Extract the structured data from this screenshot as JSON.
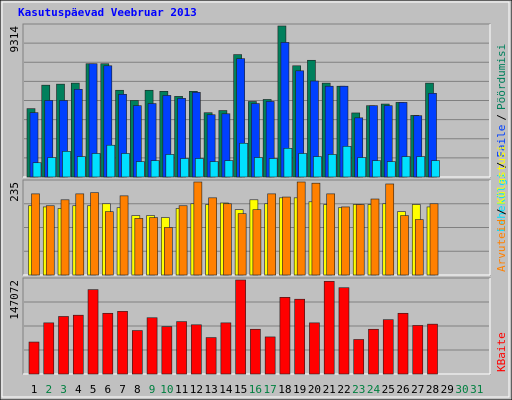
{
  "title": "Kasutuspäevad Veebruar 2013",
  "separator": "/",
  "categories": [
    "1",
    "2",
    "3",
    "4",
    "5",
    "6",
    "7",
    "8",
    "9",
    "10",
    "11",
    "12",
    "13",
    "14",
    "15",
    "16",
    "17",
    "18",
    "19",
    "20",
    "21",
    "22",
    "23",
    "24",
    "25",
    "26",
    "27",
    "28",
    "29",
    "30",
    "31"
  ],
  "category_colors": [
    "#000000",
    "#008040",
    "#008040",
    "#000000",
    "#000000",
    "#000000",
    "#000000",
    "#000000",
    "#008040",
    "#008040",
    "#000000",
    "#000000",
    "#000000",
    "#000000",
    "#000000",
    "#008040",
    "#008040",
    "#000000",
    "#000000",
    "#000000",
    "#000000",
    "#000000",
    "#008040",
    "#008040",
    "#000000",
    "#000000",
    "#000000",
    "#000000",
    "#000000",
    "#008040",
    "#008040"
  ],
  "chart_data": [
    {
      "type": "bar",
      "ylim": [
        0,
        9314
      ],
      "yticks": [
        9314
      ],
      "grid": true,
      "series": [
        {
          "name": "Pöördumisi",
          "color": "#00805c",
          "values": [
            4216,
            5664,
            5727,
            5790,
            6986,
            6986,
            5350,
            4720,
            5350,
            5286,
            4972,
            5286,
            3965,
            4100,
            7552,
            4657,
            4783,
            9314,
            6860,
            7200,
            5790,
            5600,
            3950,
            4400,
            4500,
            4600,
            3800,
            5790,
            null,
            null,
            null
          ]
        },
        {
          "name": "Faile",
          "color": "#0040ff",
          "values": [
            3970,
            4720,
            4720,
            5410,
            6986,
            6860,
            5100,
            4400,
            4530,
            5030,
            4850,
            5220,
            3840,
            3900,
            7300,
            4530,
            4660,
            8300,
            6550,
            5920,
            5600,
            5600,
            3650,
            4400,
            4400,
            4600,
            3780,
            5160,
            null,
            null,
            null
          ]
        },
        {
          "name": "Lehekülgi",
          "color": "#00e0ff",
          "values": [
            880,
            1200,
            1580,
            1260,
            1450,
            1960,
            1450,
            950,
            1010,
            1390,
            1140,
            1140,
            950,
            1010,
            2080,
            1200,
            1140,
            1770,
            1450,
            1260,
            1390,
            1890,
            1200,
            1010,
            950,
            1260,
            1260,
            1010,
            null,
            null,
            null
          ]
        }
      ]
    },
    {
      "type": "bar",
      "ylim": [
        0,
        235
      ],
      "yticks": [
        235
      ],
      "grid": true,
      "series": [
        {
          "name": "Külastusi",
          "color": "#ffff00",
          "values": [
            175,
            172,
            168,
            175,
            175,
            180,
            170,
            150,
            150,
            145,
            168,
            180,
            178,
            182,
            165,
            190,
            180,
            195,
            195,
            185,
            178,
            170,
            178,
            178,
            180,
            160,
            178,
            172,
            null,
            null,
            null
          ]
        },
        {
          "name": "Arvuteid",
          "color": "#ff8000",
          "values": [
            205,
            175,
            190,
            205,
            208,
            160,
            200,
            143,
            145,
            120,
            175,
            235,
            195,
            180,
            155,
            165,
            205,
            197,
            235,
            232,
            205,
            172,
            178,
            192,
            230,
            150,
            140,
            180,
            null,
            null,
            null
          ]
        }
      ]
    },
    {
      "type": "bar",
      "ylim": [
        0,
        147072
      ],
      "yticks": [
        147072
      ],
      "grid": true,
      "series": [
        {
          "name": "KBaite",
          "color": "#ff0000",
          "values": [
            50000,
            80000,
            90000,
            92000,
            132000,
            95000,
            98000,
            68000,
            88000,
            74000,
            82000,
            77000,
            57000,
            80000,
            147072,
            70000,
            58000,
            120000,
            117000,
            80000,
            145000,
            135000,
            54000,
            70000,
            85000,
            95000,
            76000,
            78000,
            null,
            null,
            null
          ]
        }
      ]
    }
  ]
}
